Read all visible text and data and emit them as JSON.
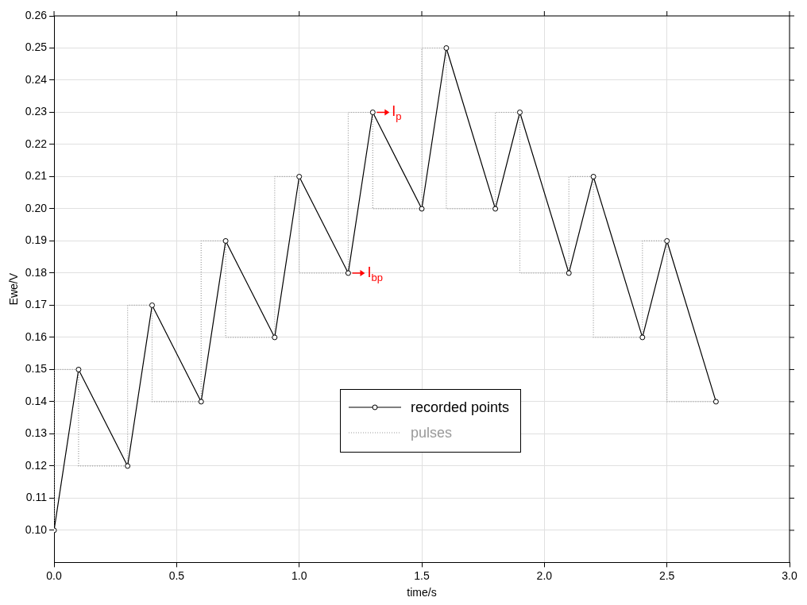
{
  "chart_data": {
    "type": "line",
    "xlabel": "time/s",
    "ylabel": "Ewe/V",
    "xlim": [
      0,
      3
    ],
    "xticks": [
      {
        "value": 0,
        "label": "0.0"
      },
      0.5,
      {
        "value": 1,
        "label": "1.0"
      },
      1.5,
      {
        "value": 2,
        "label": "2.0"
      },
      2.5,
      {
        "value": 3,
        "label": "3.0"
      }
    ],
    "ylim": [
      0.09,
      0.26
    ],
    "yticks": [
      {
        "value": 0.1,
        "label": "0.10"
      },
      0.11,
      0.12,
      0.13,
      0.14,
      0.15,
      0.16,
      0.17,
      0.18,
      0.19,
      {
        "value": 0.2,
        "label": "0.20"
      },
      0.21,
      0.22,
      0.23,
      0.24,
      0.25,
      0.26
    ],
    "grid": true,
    "legend": "bottom",
    "series": [
      {
        "name": "recorded points",
        "type": "line",
        "color": "#000000",
        "marker": "circle",
        "line_style": "solid",
        "x": [
          0,
          0.1,
          0.3,
          0.4,
          0.6,
          0.7,
          0.9,
          1.0,
          1.2,
          1.3,
          1.5,
          1.6,
          1.8,
          1.9,
          2.1,
          2.2,
          2.4,
          2.5,
          2.7
        ],
        "values": [
          0.1,
          0.15,
          0.12,
          0.17,
          0.14,
          0.19,
          0.16,
          0.21,
          0.18,
          0.23,
          0.2,
          0.25,
          0.2,
          0.23,
          0.18,
          0.21,
          0.16,
          0.19,
          0.14
        ]
      },
      {
        "name": "pulses",
        "type": "step",
        "color": "#999999",
        "marker": "none",
        "line_style": "dotted",
        "x": [
          0,
          0,
          0.1,
          0.3,
          0.4,
          0.6,
          0.7,
          0.9,
          1.0,
          1.2,
          1.3,
          1.5,
          1.6,
          1.8,
          1.9,
          2.1,
          2.2,
          2.4,
          2.5,
          2.7
        ],
        "values": [
          0.1,
          0.15,
          0.12,
          0.17,
          0.14,
          0.19,
          0.16,
          0.21,
          0.18,
          0.23,
          0.2,
          0.25,
          0.2,
          0.23,
          0.18,
          0.21,
          0.16,
          0.19,
          0.14,
          0.14
        ]
      }
    ],
    "annotations": [
      {
        "text": "I$_{p}$",
        "x": 1.3,
        "y": 0.23
      },
      {
        "text": "I$_{bp}$",
        "x": 1.2,
        "y": 0.18
      }
    ]
  }
}
